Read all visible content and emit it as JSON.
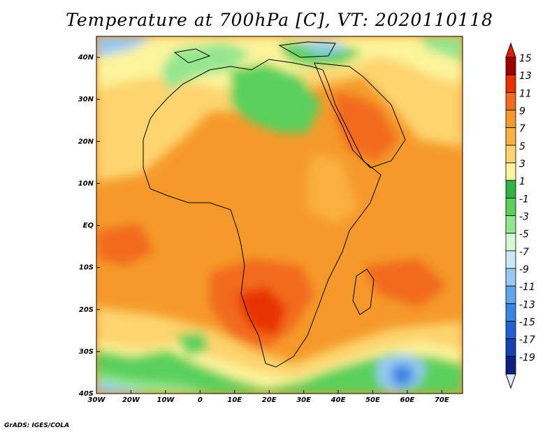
{
  "title": "Temperature at 700hPa [C], VT: 2020110118",
  "credit": "GrADS: IGES/COLA",
  "map": {
    "lon_range": [
      -30,
      76
    ],
    "lat_range": [
      -40,
      45
    ],
    "lon_ticks": [
      {
        "value": -30,
        "label": "30W"
      },
      {
        "value": -20,
        "label": "20W"
      },
      {
        "value": -10,
        "label": "10W"
      },
      {
        "value": 0,
        "label": "0"
      },
      {
        "value": 10,
        "label": "10E"
      },
      {
        "value": 20,
        "label": "20E"
      },
      {
        "value": 30,
        "label": "30E"
      },
      {
        "value": 40,
        "label": "40E"
      },
      {
        "value": 50,
        "label": "50E"
      },
      {
        "value": 60,
        "label": "60E"
      },
      {
        "value": 70,
        "label": "70E"
      }
    ],
    "lat_ticks": [
      {
        "value": 40,
        "label": "40N"
      },
      {
        "value": 30,
        "label": "30N"
      },
      {
        "value": 20,
        "label": "20N"
      },
      {
        "value": 10,
        "label": "10N"
      },
      {
        "value": 0,
        "label": "EQ"
      },
      {
        "value": -10,
        "label": "10S"
      },
      {
        "value": -20,
        "label": "20S"
      },
      {
        "value": -30,
        "label": "30S"
      },
      {
        "value": -40,
        "label": "40S"
      }
    ]
  },
  "colorbar": {
    "levels": [
      {
        "label": "15",
        "color": "#a00000"
      },
      {
        "label": "13",
        "color": "#e83000"
      },
      {
        "label": "11",
        "color": "#f26a1c"
      },
      {
        "label": "9",
        "color": "#f59a2a"
      },
      {
        "label": "7",
        "color": "#fab13f"
      },
      {
        "label": "5",
        "color": "#fdd46e"
      },
      {
        "label": "3",
        "color": "#fdf49c"
      },
      {
        "label": "1",
        "color": "#2fb445"
      },
      {
        "label": "-1",
        "color": "#5ad05b"
      },
      {
        "label": "-3",
        "color": "#96e690"
      },
      {
        "label": "-5",
        "color": "#d8f8d4"
      },
      {
        "label": "-7",
        "color": "#cbe7f8"
      },
      {
        "label": "-9",
        "color": "#97caf3"
      },
      {
        "label": "-11",
        "color": "#5fa6ec"
      },
      {
        "label": "-13",
        "color": "#3a84e2"
      },
      {
        "label": "-15",
        "color": "#2160d4"
      },
      {
        "label": "-17",
        "color": "#1440b8"
      },
      {
        "label": "-19",
        "color": "#0a1f80"
      }
    ],
    "top_color": "#e02000",
    "bottom_color": "#dfe8ff"
  }
}
